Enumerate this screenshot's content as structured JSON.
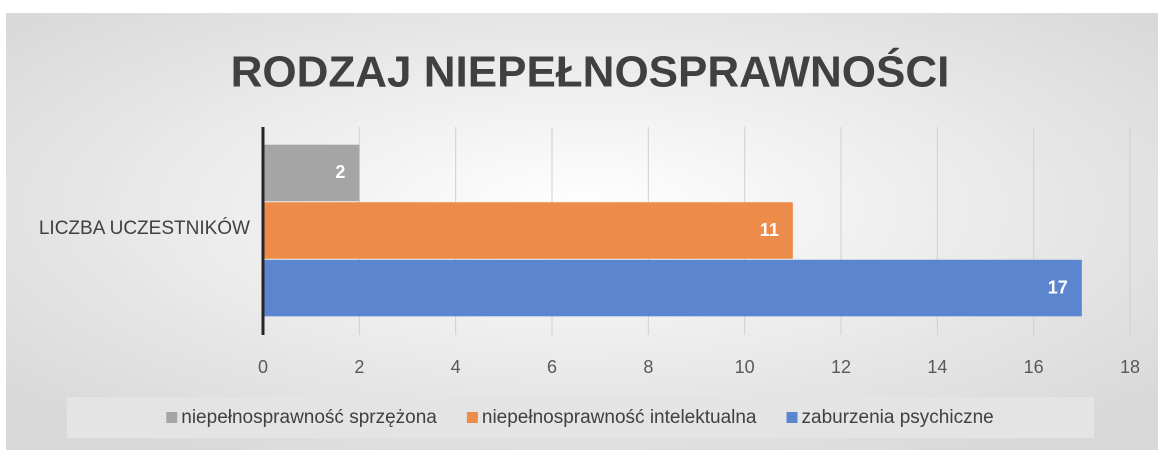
{
  "chart_data": {
    "type": "bar",
    "orientation": "horizontal",
    "title": "RODZAJ NIEPEŁNOSPRAWNOŚCI",
    "categories": [
      "LICZBA UCZESTNIKÓW"
    ],
    "series": [
      {
        "name": "niepełnosprawność sprzężona",
        "color": "#a5a5a5",
        "values": [
          2
        ]
      },
      {
        "name": "niepełnosprawność intelektualna",
        "color": "#ed8b4a",
        "values": [
          11
        ]
      },
      {
        "name": "zaburzenia psychiczne",
        "color": "#5b86cf",
        "values": [
          17
        ]
      }
    ],
    "xlim": [
      0,
      18
    ],
    "xticks": [
      0,
      2,
      4,
      6,
      8,
      10,
      12,
      14,
      16,
      18
    ],
    "grid": true,
    "legend": "bottom"
  }
}
